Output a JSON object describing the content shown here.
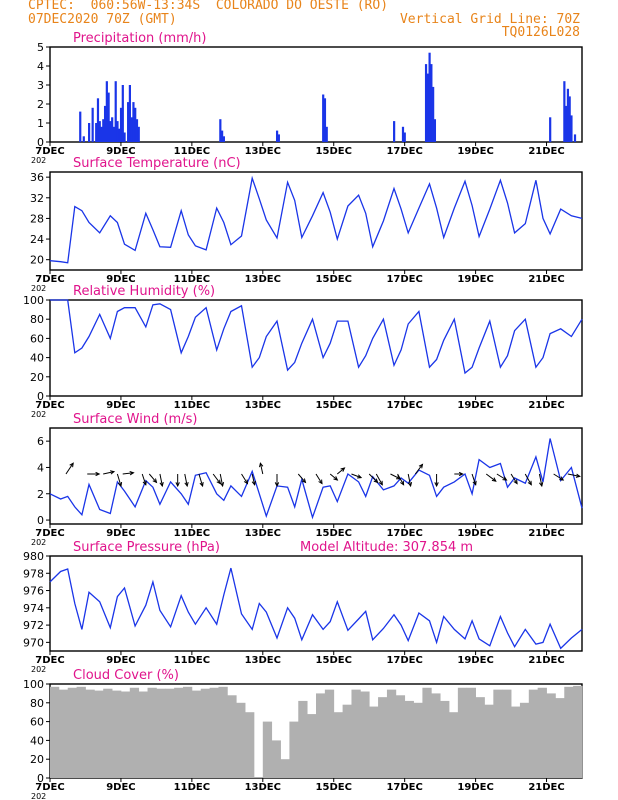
{
  "header": {
    "line1": "CPTEC:  060:56W-13:34S  COLORADO DO OESTE (RO)",
    "line2": "07DEC2020 70Z (GMT)",
    "vertical_grid": "Vertical Grid Line: 70Z",
    "code": "TQ0126L028"
  },
  "colors": {
    "header": "#e8841a",
    "panel_title": "#e0148c",
    "series": "#1a35e8",
    "cloud": "#b0b0b0",
    "arrow": "#000000"
  },
  "x_ticks": [
    "7DEC",
    "9DEC",
    "11DEC",
    "13DEC",
    "15DEC",
    "17DEC",
    "19DEC",
    "21DEC"
  ],
  "x_tick_days": [
    0,
    2,
    4,
    6,
    8,
    10,
    12,
    14
  ],
  "x_year_stub": "202",
  "chart_data": [
    {
      "type": "bar",
      "title": "Precipitation (mm/h)",
      "ylim": [
        0,
        5
      ],
      "yticks": [
        0,
        1,
        2,
        3,
        4,
        5
      ],
      "x": [
        0.85,
        0.95,
        1.1,
        1.2,
        1.3,
        1.35,
        1.4,
        1.45,
        1.5,
        1.55,
        1.6,
        1.65,
        1.7,
        1.75,
        1.8,
        1.85,
        1.9,
        1.95,
        2.0,
        2.05,
        2.1,
        2.2,
        2.25,
        2.3,
        2.35,
        2.4,
        2.45,
        2.5,
        4.8,
        4.85,
        4.9,
        6.4,
        6.45,
        7.7,
        7.75,
        7.8,
        9.7,
        9.95,
        10.0,
        10.6,
        10.65,
        10.7,
        10.75,
        10.8,
        10.85,
        14.1,
        14.5,
        14.55,
        14.6,
        14.65,
        14.7,
        14.8
      ],
      "values": [
        1.6,
        0.3,
        1.0,
        1.8,
        1.0,
        2.3,
        1.1,
        0.8,
        1.2,
        1.9,
        3.2,
        2.6,
        1.1,
        1.3,
        0.8,
        3.2,
        1.1,
        0.7,
        1.8,
        3.0,
        0.5,
        2.1,
        3.0,
        1.3,
        2.1,
        1.8,
        1.2,
        0.8,
        1.2,
        0.6,
        0.3,
        0.6,
        0.4,
        2.5,
        2.3,
        0.8,
        1.1,
        0.8,
        0.5,
        4.1,
        3.6,
        4.7,
        4.1,
        2.9,
        1.2,
        1.3,
        3.2,
        1.9,
        2.8,
        2.4,
        1.4,
        0.4
      ]
    },
    {
      "type": "line",
      "title": "Surface Temperature (nC)",
      "ylim": [
        18,
        37
      ],
      "yticks": [
        20,
        24,
        28,
        32,
        36
      ],
      "x": [
        0,
        0.3,
        0.5,
        0.7,
        0.9,
        1.1,
        1.4,
        1.7,
        1.9,
        2.1,
        2.4,
        2.7,
        2.9,
        3.1,
        3.4,
        3.7,
        3.9,
        4.1,
        4.4,
        4.7,
        4.9,
        5.1,
        5.4,
        5.7,
        5.9,
        6.1,
        6.4,
        6.7,
        6.9,
        7.1,
        7.4,
        7.7,
        7.9,
        8.1,
        8.4,
        8.7,
        8.9,
        9.1,
        9.4,
        9.7,
        9.9,
        10.1,
        10.4,
        10.7,
        10.9,
        11.1,
        11.4,
        11.7,
        11.9,
        12.1,
        12.4,
        12.7,
        12.9,
        13.1,
        13.4,
        13.7,
        13.9,
        14.1,
        14.4,
        14.7,
        15.0
      ],
      "values": [
        19.8,
        19.6,
        19.4,
        30.3,
        29.5,
        27.2,
        25.2,
        28.5,
        27.2,
        23.0,
        21.8,
        29.0,
        25.8,
        22.5,
        22.4,
        29.5,
        24.8,
        22.7,
        21.9,
        30.0,
        27.2,
        22.9,
        24.6,
        35.8,
        31.8,
        27.7,
        24.2,
        35.0,
        31.5,
        24.3,
        28.5,
        33.0,
        29.2,
        24.0,
        30.4,
        32.5,
        29.0,
        22.5,
        27.5,
        33.8,
        29.8,
        25.2,
        30.0,
        34.7,
        30.0,
        24.3,
        30.0,
        35.2,
        30.5,
        24.5,
        29.8,
        35.4,
        31.0,
        25.2,
        27.0,
        35.4,
        28.0,
        25.0,
        29.8,
        28.5,
        28.0
      ]
    },
    {
      "type": "line",
      "title": "Relative Humidity (%)",
      "ylim": [
        0,
        100
      ],
      "yticks": [
        0,
        20,
        40,
        60,
        80,
        100
      ],
      "x": [
        0,
        0.3,
        0.5,
        0.7,
        0.9,
        1.1,
        1.4,
        1.7,
        1.9,
        2.1,
        2.4,
        2.7,
        2.9,
        3.1,
        3.4,
        3.7,
        3.9,
        4.1,
        4.4,
        4.7,
        4.9,
        5.1,
        5.4,
        5.7,
        5.9,
        6.1,
        6.4,
        6.7,
        6.9,
        7.1,
        7.4,
        7.7,
        7.9,
        8.1,
        8.4,
        8.7,
        8.9,
        9.1,
        9.4,
        9.7,
        9.9,
        10.1,
        10.4,
        10.7,
        10.9,
        11.1,
        11.4,
        11.7,
        11.9,
        12.1,
        12.4,
        12.7,
        12.9,
        13.1,
        13.4,
        13.7,
        13.9,
        14.1,
        14.4,
        14.7,
        15.0
      ],
      "values": [
        100,
        100,
        100,
        45,
        50,
        62,
        85,
        60,
        88,
        92,
        92,
        72,
        95,
        96,
        90,
        45,
        62,
        82,
        92,
        48,
        70,
        88,
        94,
        30,
        40,
        62,
        78,
        27,
        35,
        55,
        80,
        40,
        55,
        78,
        78,
        30,
        42,
        60,
        80,
        32,
        48,
        75,
        88,
        30,
        38,
        58,
        80,
        24,
        30,
        50,
        78,
        30,
        42,
        68,
        80,
        30,
        40,
        65,
        70,
        62,
        80
      ]
    },
    {
      "type": "line",
      "title": "Surface Wind (m/s)",
      "ylim": [
        -0.3,
        7
      ],
      "yticks": [
        0,
        2,
        4,
        6
      ],
      "x": [
        0,
        0.3,
        0.5,
        0.7,
        0.9,
        1.1,
        1.4,
        1.7,
        1.9,
        2.1,
        2.4,
        2.7,
        2.9,
        3.1,
        3.4,
        3.7,
        3.9,
        4.1,
        4.4,
        4.7,
        4.9,
        5.1,
        5.4,
        5.7,
        5.9,
        6.1,
        6.4,
        6.7,
        6.9,
        7.1,
        7.4,
        7.7,
        7.9,
        8.1,
        8.4,
        8.7,
        8.9,
        9.1,
        9.4,
        9.7,
        9.9,
        10.1,
        10.4,
        10.7,
        10.9,
        11.1,
        11.4,
        11.7,
        11.9,
        12.1,
        12.4,
        12.7,
        12.9,
        13.1,
        13.4,
        13.7,
        13.9,
        14.1,
        14.4,
        14.7,
        15.0
      ],
      "values": [
        2.0,
        1.6,
        1.8,
        1.0,
        0.4,
        2.7,
        0.8,
        0.5,
        2.9,
        2.2,
        1.0,
        3.0,
        2.5,
        1.2,
        2.9,
        2.0,
        1.2,
        3.4,
        3.6,
        2.0,
        1.5,
        2.6,
        1.8,
        3.7,
        2.0,
        0.3,
        2.6,
        2.5,
        1.0,
        3.1,
        0.2,
        2.5,
        2.6,
        1.4,
        3.5,
        2.9,
        1.8,
        3.3,
        2.3,
        2.6,
        3.2,
        2.8,
        3.8,
        3.4,
        1.8,
        2.5,
        2.9,
        3.5,
        2.0,
        4.6,
        4.0,
        4.3,
        2.5,
        3.2,
        2.8,
        4.8,
        2.9,
        6.2,
        3.0,
        4.0,
        0.9
      ],
      "arrows": [
        {
          "day": 0.45,
          "dx": 0.6,
          "dy": -0.9
        },
        {
          "day": 1.05,
          "dx": 1.0,
          "dy": 0.0
        },
        {
          "day": 1.5,
          "dx": 0.9,
          "dy": -0.2
        },
        {
          "day": 1.9,
          "dx": 0.3,
          "dy": 1.0
        },
        {
          "day": 2.05,
          "dx": 0.9,
          "dy": -0.1
        },
        {
          "day": 2.6,
          "dx": 0.3,
          "dy": 0.9
        },
        {
          "day": 2.8,
          "dx": 0.6,
          "dy": 0.7
        },
        {
          "day": 3.1,
          "dx": 0.2,
          "dy": 1.0
        },
        {
          "day": 3.6,
          "dx": 0.0,
          "dy": 1.0
        },
        {
          "day": 3.8,
          "dx": 0.2,
          "dy": 1.0
        },
        {
          "day": 4.2,
          "dx": 0.3,
          "dy": 1.0
        },
        {
          "day": 4.6,
          "dx": 0.6,
          "dy": 0.8
        },
        {
          "day": 4.8,
          "dx": 0.2,
          "dy": 1.0
        },
        {
          "day": 5.4,
          "dx": 0.5,
          "dy": 0.8
        },
        {
          "day": 5.7,
          "dx": 0.2,
          "dy": 0.9
        },
        {
          "day": 6.0,
          "dx": -0.2,
          "dy": -0.9
        },
        {
          "day": 6.4,
          "dx": 0.0,
          "dy": 1.0
        },
        {
          "day": 7.0,
          "dx": 0.6,
          "dy": 0.7
        },
        {
          "day": 7.5,
          "dx": 0.5,
          "dy": 0.8
        },
        {
          "day": 7.9,
          "dx": 0.6,
          "dy": 0.5
        },
        {
          "day": 8.1,
          "dx": 0.6,
          "dy": -0.5
        },
        {
          "day": 8.5,
          "dx": 0.8,
          "dy": 0.3
        },
        {
          "day": 9.0,
          "dx": 0.7,
          "dy": 0.7
        },
        {
          "day": 9.2,
          "dx": 0.5,
          "dy": 0.9
        },
        {
          "day": 9.6,
          "dx": 0.8,
          "dy": 0.4
        },
        {
          "day": 9.8,
          "dx": 0.5,
          "dy": 0.9
        },
        {
          "day": 10.1,
          "dx": 0.2,
          "dy": 1.0
        },
        {
          "day": 10.3,
          "dx": 0.6,
          "dy": -0.8
        },
        {
          "day": 10.9,
          "dx": 0.0,
          "dy": 1.0
        },
        {
          "day": 11.4,
          "dx": 0.7,
          "dy": 0.0
        },
        {
          "day": 11.9,
          "dx": 0.3,
          "dy": 0.9
        },
        {
          "day": 12.3,
          "dx": 0.8,
          "dy": 0.6
        },
        {
          "day": 12.6,
          "dx": 0.8,
          "dy": 0.5
        },
        {
          "day": 13.0,
          "dx": 0.5,
          "dy": 0.8
        },
        {
          "day": 13.4,
          "dx": 0.5,
          "dy": 0.9
        },
        {
          "day": 13.8,
          "dx": 0.2,
          "dy": 1.0
        },
        {
          "day": 14.2,
          "dx": 0.8,
          "dy": 0.5
        },
        {
          "day": 14.6,
          "dx": 1.0,
          "dy": 0.2
        }
      ]
    },
    {
      "type": "line",
      "title": "Surface Pressure (hPa)",
      "annotation": "Model Altitude: 307.854 m",
      "ylim": [
        969,
        980
      ],
      "yticks": [
        970,
        972,
        974,
        976,
        978,
        980
      ],
      "x": [
        0,
        0.3,
        0.5,
        0.7,
        0.9,
        1.1,
        1.4,
        1.7,
        1.9,
        2.1,
        2.4,
        2.7,
        2.9,
        3.1,
        3.4,
        3.7,
        3.9,
        4.1,
        4.4,
        4.7,
        4.9,
        5.1,
        5.4,
        5.7,
        5.9,
        6.1,
        6.4,
        6.7,
        6.9,
        7.1,
        7.4,
        7.7,
        7.9,
        8.1,
        8.4,
        8.7,
        8.9,
        9.1,
        9.4,
        9.7,
        9.9,
        10.1,
        10.4,
        10.7,
        10.9,
        11.1,
        11.4,
        11.7,
        11.9,
        12.1,
        12.4,
        12.7,
        12.9,
        13.1,
        13.4,
        13.7,
        13.9,
        14.1,
        14.4,
        14.7,
        15.0
      ],
      "values": [
        977.0,
        978.2,
        978.5,
        974.5,
        971.5,
        975.8,
        974.7,
        971.7,
        975.3,
        976.3,
        971.9,
        974.3,
        977.0,
        973.7,
        971.8,
        975.4,
        973.5,
        972.1,
        974.0,
        972.1,
        975.5,
        978.6,
        973.3,
        971.5,
        974.5,
        973.5,
        970.5,
        974.0,
        972.8,
        970.3,
        973.2,
        971.5,
        972.4,
        974.7,
        971.4,
        972.7,
        973.6,
        970.3,
        971.6,
        973.2,
        972.0,
        970.2,
        973.4,
        972.5,
        970.0,
        973.0,
        971.5,
        970.4,
        972.5,
        970.4,
        969.6,
        973.0,
        971.1,
        969.5,
        971.5,
        969.8,
        970.0,
        972.1,
        969.3,
        970.5,
        971.5
      ]
    },
    {
      "type": "bar",
      "title": "Cloud Cover (%)",
      "ylim": [
        0,
        100
      ],
      "yticks": [
        0,
        20,
        40,
        60,
        80,
        100
      ],
      "x": [
        0,
        0.25,
        0.5,
        0.75,
        1.0,
        1.25,
        1.5,
        1.75,
        2.0,
        2.25,
        2.5,
        2.75,
        3.0,
        3.25,
        3.5,
        3.75,
        4.0,
        4.25,
        4.5,
        4.75,
        5.0,
        5.25,
        5.5,
        5.75,
        6.0,
        6.25,
        6.5,
        6.75,
        7.0,
        7.25,
        7.5,
        7.75,
        8.0,
        8.25,
        8.5,
        8.75,
        9.0,
        9.25,
        9.5,
        9.75,
        10.0,
        10.25,
        10.5,
        10.75,
        11.0,
        11.25,
        11.5,
        11.75,
        12.0,
        12.25,
        12.5,
        12.75,
        13.0,
        13.25,
        13.5,
        13.75,
        14.0,
        14.25,
        14.5,
        14.75
      ],
      "values": [
        97,
        94,
        96,
        97,
        94,
        93,
        95,
        93,
        92,
        96,
        92,
        96,
        95,
        95,
        96,
        97,
        93,
        95,
        96,
        97,
        88,
        80,
        70,
        1,
        60,
        40,
        20,
        60,
        82,
        68,
        90,
        94,
        70,
        78,
        94,
        92,
        76,
        86,
        94,
        88,
        82,
        80,
        96,
        90,
        82,
        70,
        96,
        96,
        86,
        78,
        94,
        94,
        76,
        80,
        94,
        96,
        90,
        85,
        97,
        98
      ]
    }
  ]
}
